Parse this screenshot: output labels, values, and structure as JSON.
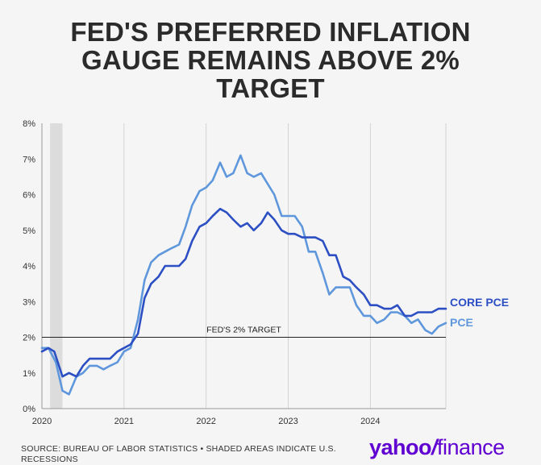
{
  "title_lines": [
    "FED'S PREFERRED INFLATION",
    "GAUGE REMAINS ABOVE 2%",
    "TARGET"
  ],
  "footer": {
    "source": "SOURCE: BUREAU OF LABOR STATISTICS • SHADED AREAS INDICATE U.S. RECESSIONS"
  },
  "brand": {
    "left": "yahoo",
    "slash": "/",
    "right": "finance",
    "color": "#6001d2"
  },
  "colors": {
    "core_pce": "#2c4fc4",
    "pce": "#5f97dc",
    "target": "#222222",
    "recession": "#dcdcdc",
    "grid": "#cccccc",
    "axis_text": "#333333"
  },
  "chart_data": {
    "type": "line",
    "title": "FED'S PREFERRED INFLATION GAUGE REMAINS ABOVE 2% TARGET",
    "xlabel": "",
    "ylabel": "",
    "xlim": [
      2020.0,
      2024.92
    ],
    "ylim": [
      0,
      8
    ],
    "x_ticks": [
      2020,
      2021,
      2022,
      2023,
      2024
    ],
    "x_tick_labels": [
      "2020",
      "2021",
      "2022",
      "2023",
      "2024"
    ],
    "y_ticks": [
      0,
      1,
      2,
      3,
      4,
      5,
      6,
      7,
      8
    ],
    "y_tick_labels": [
      "0%",
      "1%",
      "2%",
      "3%",
      "4%",
      "5%",
      "6%",
      "7%",
      "8%"
    ],
    "grid": "vertical",
    "recession_shading": [
      {
        "start": 2020.1,
        "end": 2020.25
      }
    ],
    "reference_line": {
      "value": 2,
      "label": "FED'S 2% TARGET"
    },
    "series": [
      {
        "name": "CORE PCE",
        "color": "#2c4fc4",
        "points": [
          [
            2020.0,
            1.6
          ],
          [
            2020.08,
            1.7
          ],
          [
            2020.15,
            1.6
          ],
          [
            2020.25,
            0.9
          ],
          [
            2020.33,
            1.0
          ],
          [
            2020.42,
            0.9
          ],
          [
            2020.5,
            1.2
          ],
          [
            2020.58,
            1.4
          ],
          [
            2020.67,
            1.4
          ],
          [
            2020.75,
            1.4
          ],
          [
            2020.83,
            1.4
          ],
          [
            2020.92,
            1.6
          ],
          [
            2021.0,
            1.7
          ],
          [
            2021.08,
            1.8
          ],
          [
            2021.17,
            2.1
          ],
          [
            2021.25,
            3.1
          ],
          [
            2021.33,
            3.5
          ],
          [
            2021.42,
            3.7
          ],
          [
            2021.5,
            4.0
          ],
          [
            2021.58,
            4.0
          ],
          [
            2021.67,
            4.0
          ],
          [
            2021.75,
            4.2
          ],
          [
            2021.83,
            4.7
          ],
          [
            2021.92,
            5.1
          ],
          [
            2022.0,
            5.2
          ],
          [
            2022.08,
            5.4
          ],
          [
            2022.17,
            5.6
          ],
          [
            2022.25,
            5.5
          ],
          [
            2022.33,
            5.3
          ],
          [
            2022.42,
            5.1
          ],
          [
            2022.5,
            5.2
          ],
          [
            2022.58,
            5.0
          ],
          [
            2022.67,
            5.2
          ],
          [
            2022.75,
            5.5
          ],
          [
            2022.83,
            5.3
          ],
          [
            2022.92,
            5.0
          ],
          [
            2023.0,
            4.9
          ],
          [
            2023.08,
            4.9
          ],
          [
            2023.17,
            4.8
          ],
          [
            2023.25,
            4.8
          ],
          [
            2023.33,
            4.8
          ],
          [
            2023.42,
            4.7
          ],
          [
            2023.5,
            4.3
          ],
          [
            2023.58,
            4.3
          ],
          [
            2023.67,
            3.7
          ],
          [
            2023.75,
            3.6
          ],
          [
            2023.83,
            3.4
          ],
          [
            2023.92,
            3.2
          ],
          [
            2024.0,
            2.9
          ],
          [
            2024.08,
            2.9
          ],
          [
            2024.17,
            2.8
          ],
          [
            2024.25,
            2.8
          ],
          [
            2024.33,
            2.9
          ],
          [
            2024.42,
            2.6
          ],
          [
            2024.5,
            2.6
          ],
          [
            2024.58,
            2.7
          ],
          [
            2024.67,
            2.7
          ],
          [
            2024.75,
            2.7
          ],
          [
            2024.83,
            2.8
          ],
          [
            2024.92,
            2.8
          ]
        ],
        "end_label": "CORE PCE"
      },
      {
        "name": "PCE",
        "color": "#5f97dc",
        "points": [
          [
            2020.0,
            1.7
          ],
          [
            2020.08,
            1.7
          ],
          [
            2020.17,
            1.3
          ],
          [
            2020.25,
            0.5
          ],
          [
            2020.33,
            0.4
          ],
          [
            2020.42,
            0.9
          ],
          [
            2020.5,
            1.0
          ],
          [
            2020.58,
            1.2
          ],
          [
            2020.67,
            1.2
          ],
          [
            2020.75,
            1.1
          ],
          [
            2020.83,
            1.2
          ],
          [
            2020.92,
            1.3
          ],
          [
            2021.0,
            1.6
          ],
          [
            2021.08,
            1.7
          ],
          [
            2021.17,
            2.5
          ],
          [
            2021.25,
            3.6
          ],
          [
            2021.33,
            4.1
          ],
          [
            2021.42,
            4.3
          ],
          [
            2021.5,
            4.4
          ],
          [
            2021.58,
            4.5
          ],
          [
            2021.67,
            4.6
          ],
          [
            2021.75,
            5.1
          ],
          [
            2021.83,
            5.7
          ],
          [
            2021.92,
            6.1
          ],
          [
            2022.0,
            6.2
          ],
          [
            2022.08,
            6.4
          ],
          [
            2022.17,
            6.9
          ],
          [
            2022.25,
            6.5
          ],
          [
            2022.33,
            6.6
          ],
          [
            2022.42,
            7.1
          ],
          [
            2022.5,
            6.6
          ],
          [
            2022.58,
            6.5
          ],
          [
            2022.67,
            6.6
          ],
          [
            2022.75,
            6.3
          ],
          [
            2022.83,
            6.0
          ],
          [
            2022.92,
            5.4
          ],
          [
            2023.0,
            5.4
          ],
          [
            2023.08,
            5.4
          ],
          [
            2023.17,
            5.1
          ],
          [
            2023.25,
            4.4
          ],
          [
            2023.33,
            4.4
          ],
          [
            2023.42,
            3.8
          ],
          [
            2023.5,
            3.2
          ],
          [
            2023.58,
            3.4
          ],
          [
            2023.67,
            3.4
          ],
          [
            2023.75,
            3.4
          ],
          [
            2023.83,
            2.9
          ],
          [
            2023.92,
            2.6
          ],
          [
            2024.0,
            2.6
          ],
          [
            2024.08,
            2.4
          ],
          [
            2024.17,
            2.5
          ],
          [
            2024.25,
            2.7
          ],
          [
            2024.33,
            2.7
          ],
          [
            2024.42,
            2.6
          ],
          [
            2024.5,
            2.4
          ],
          [
            2024.58,
            2.5
          ],
          [
            2024.67,
            2.2
          ],
          [
            2024.75,
            2.1
          ],
          [
            2024.83,
            2.3
          ],
          [
            2024.92,
            2.4
          ]
        ],
        "end_label": "PCE"
      }
    ]
  }
}
